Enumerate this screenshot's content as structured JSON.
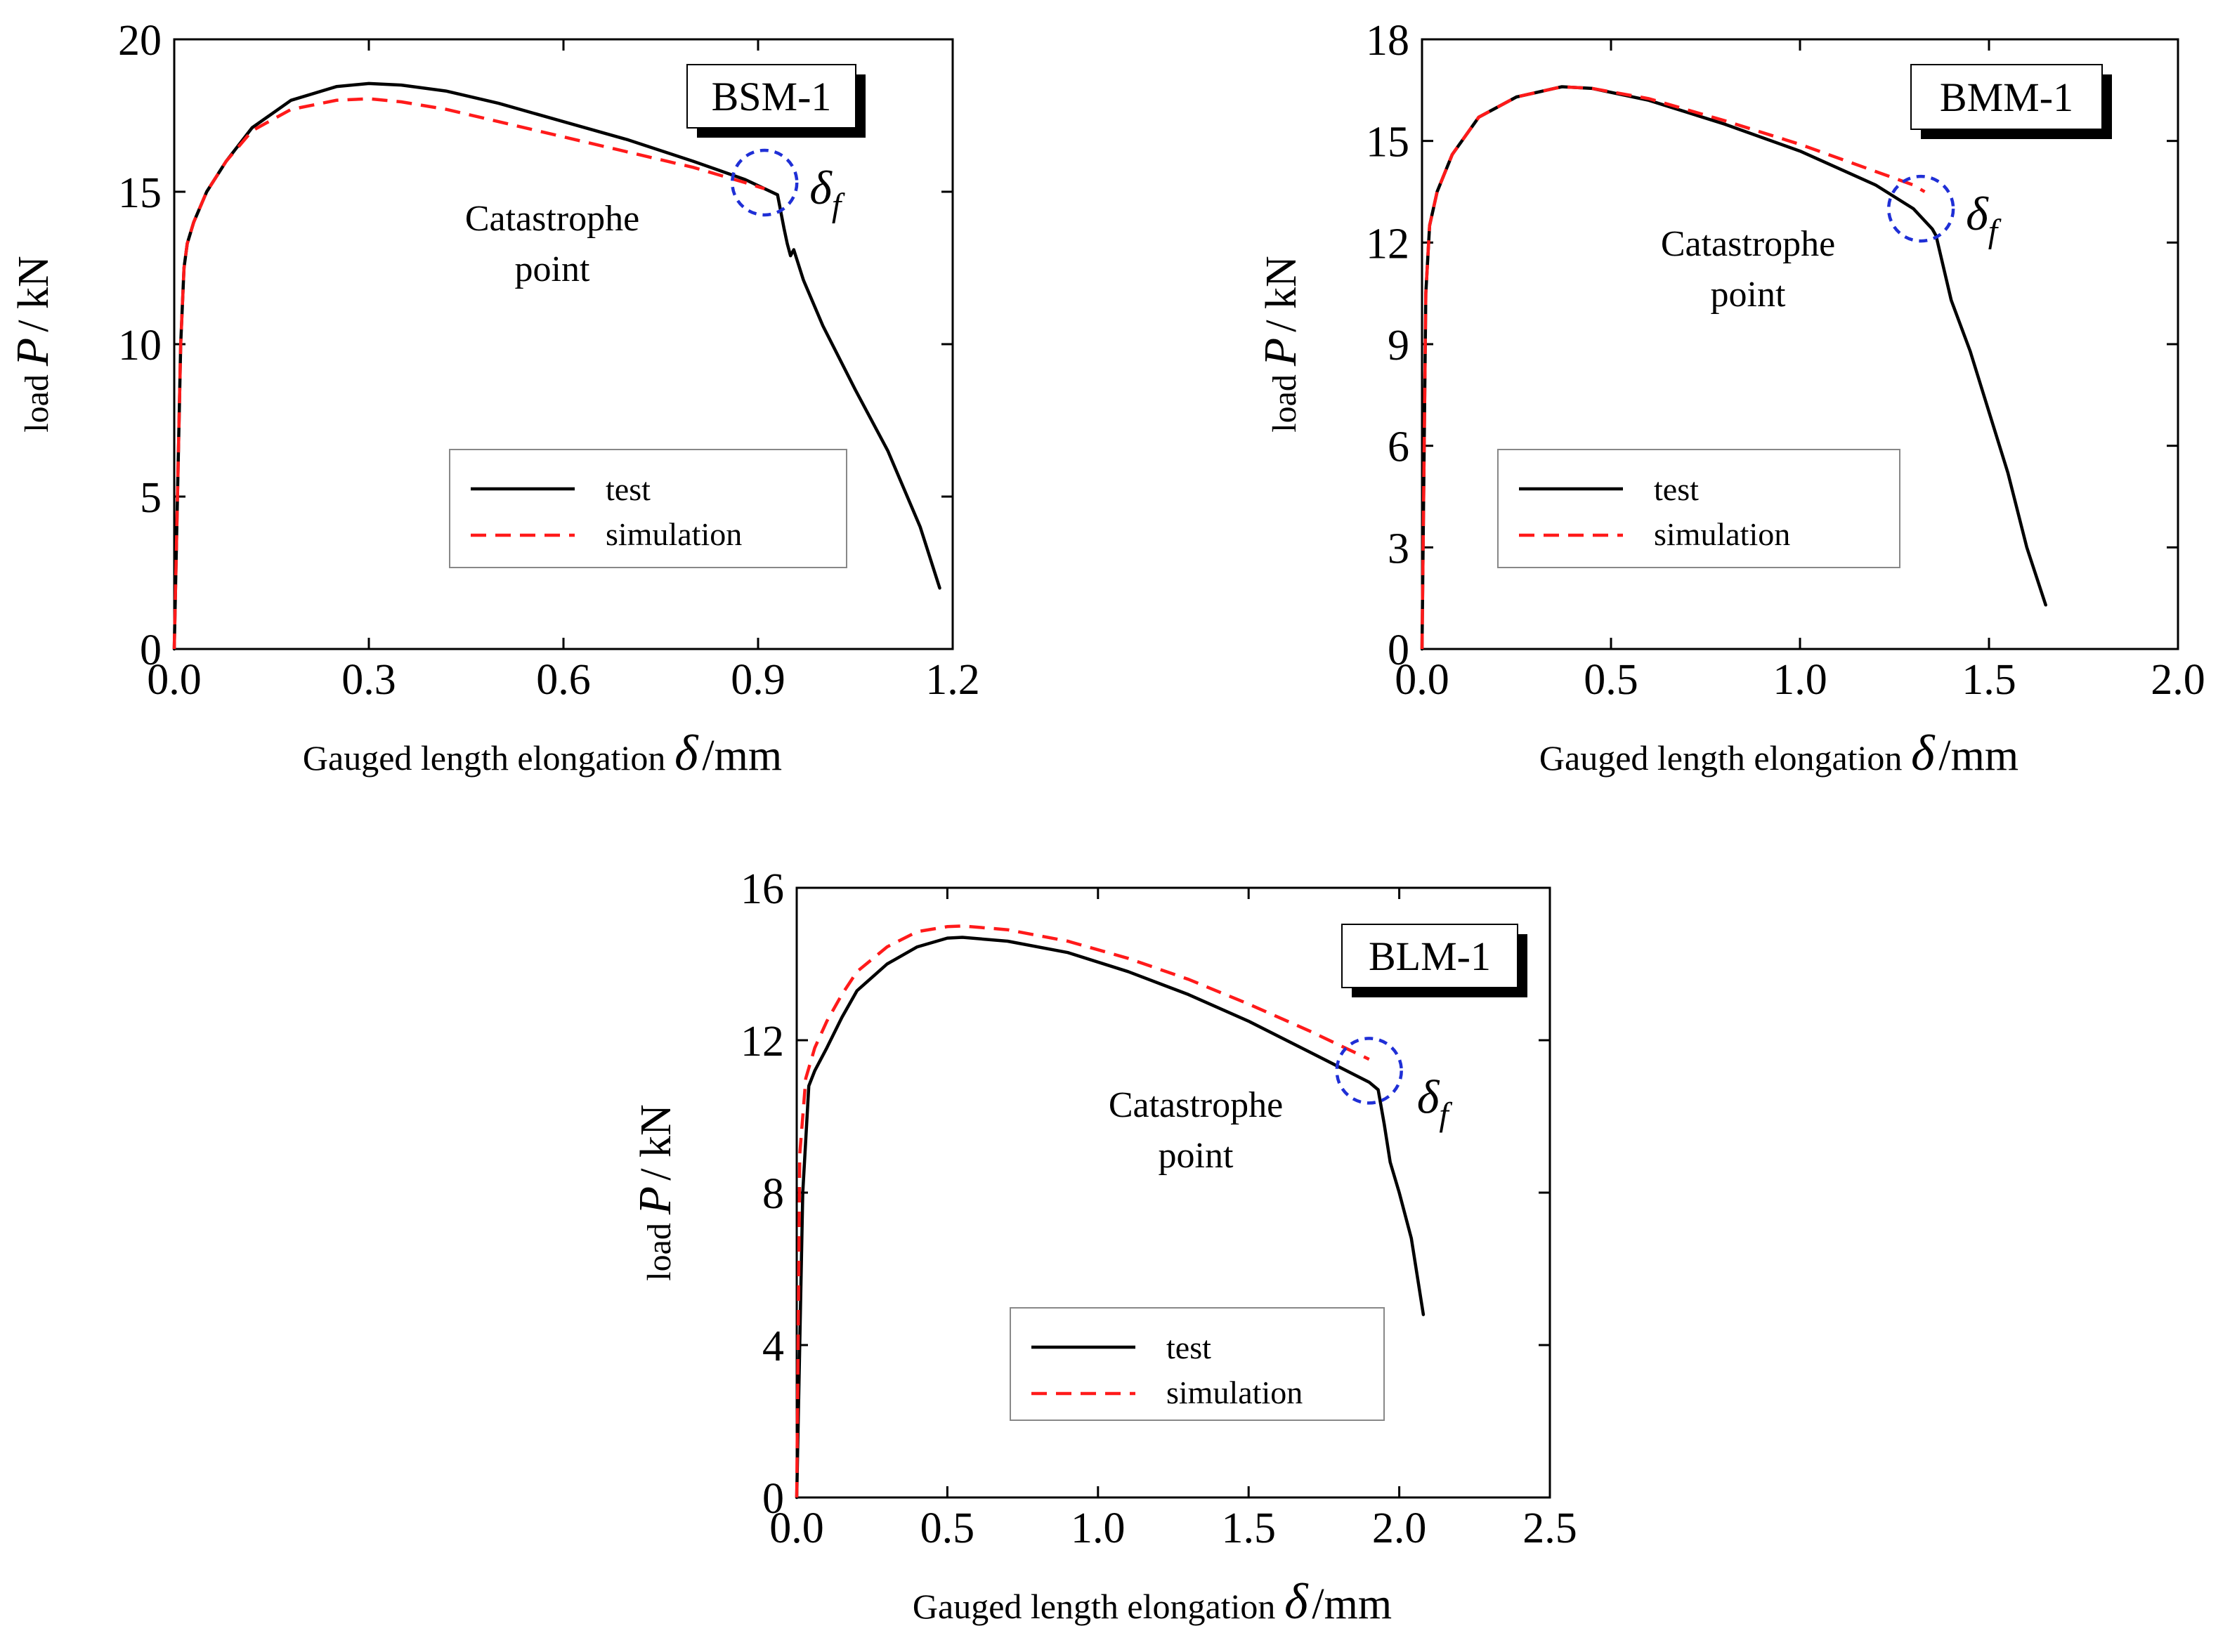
{
  "colors": {
    "test": "#000000",
    "simulation": "#ff1a1a",
    "catastrophe_circle": "#1f2fd6"
  },
  "chart_data": [
    {
      "type": "line",
      "specimen": "BSM-1",
      "xlabel": "Gauged length elongation",
      "xlabel_symbol": "δ",
      "xlabel_unit": "/mm",
      "ylabel_prefix": "load",
      "ylabel_symbol": "P",
      "ylabel_unit": "/ kN",
      "xlim": [
        0,
        1.2
      ],
      "ylim": [
        0,
        20
      ],
      "xticks": [
        0.0,
        0.3,
        0.6,
        0.9,
        1.2
      ],
      "xtick_labels": [
        "0.0",
        "0.3",
        "0.6",
        "0.9",
        "1.2"
      ],
      "yticks": [
        0,
        5,
        10,
        15,
        20
      ],
      "ytick_labels": [
        "0",
        "5",
        "10",
        "15",
        "20"
      ],
      "annotation_lines": [
        "Catastrophe",
        "point"
      ],
      "delta_f_symbol": "δ",
      "delta_f_sub": "f",
      "catastrophe_point": {
        "x": 0.91,
        "y": 15.3
      },
      "legend": [
        "test",
        "simulation"
      ],
      "series": [
        {
          "name": "test",
          "x": [
            0,
            0.01,
            0.015,
            0.02,
            0.03,
            0.05,
            0.08,
            0.12,
            0.18,
            0.25,
            0.3,
            0.35,
            0.42,
            0.5,
            0.6,
            0.7,
            0.8,
            0.88,
            0.93,
            0.94,
            0.945,
            0.95,
            0.955,
            0.97,
            1.0,
            1.05,
            1.1,
            1.15,
            1.18
          ],
          "y": [
            0,
            10.0,
            12.5,
            13.3,
            14.0,
            15.0,
            16.0,
            17.1,
            18.0,
            18.45,
            18.55,
            18.5,
            18.3,
            17.9,
            17.3,
            16.7,
            16.0,
            15.4,
            14.9,
            13.8,
            13.3,
            12.9,
            13.1,
            12.1,
            10.6,
            8.5,
            6.5,
            4.0,
            2.0
          ]
        },
        {
          "name": "simulation",
          "x": [
            0,
            0.01,
            0.015,
            0.02,
            0.03,
            0.05,
            0.08,
            0.12,
            0.18,
            0.25,
            0.3,
            0.35,
            0.42,
            0.5,
            0.6,
            0.7,
            0.8,
            0.88,
            0.91
          ],
          "y": [
            0,
            10.0,
            12.5,
            13.3,
            14.0,
            15.0,
            16.0,
            17.0,
            17.7,
            18.0,
            18.05,
            17.95,
            17.7,
            17.3,
            16.8,
            16.3,
            15.8,
            15.3,
            15.1
          ]
        }
      ]
    },
    {
      "type": "line",
      "specimen": "BMM-1",
      "xlabel": "Gauged length elongation",
      "xlabel_symbol": "δ",
      "xlabel_unit": "/mm",
      "ylabel_prefix": "load",
      "ylabel_symbol": "P",
      "ylabel_unit": "/ kN",
      "xlim": [
        0,
        2.0
      ],
      "ylim": [
        0,
        18
      ],
      "xticks": [
        0.0,
        0.5,
        1.0,
        1.5,
        2.0
      ],
      "xtick_labels": [
        "0.0",
        "0.5",
        "1.0",
        "1.5",
        "2.0"
      ],
      "yticks": [
        0,
        3,
        6,
        9,
        12,
        15,
        18
      ],
      "ytick_labels": [
        "0",
        "3",
        "6",
        "9",
        "12",
        "15",
        "18"
      ],
      "annotation_lines": [
        "Catastrophe",
        "point"
      ],
      "delta_f_symbol": "δ",
      "delta_f_sub": "f",
      "catastrophe_point": {
        "x": 1.32,
        "y": 13.0
      },
      "legend": [
        "test",
        "simulation"
      ],
      "series": [
        {
          "name": "test",
          "x": [
            0,
            0.01,
            0.02,
            0.04,
            0.08,
            0.15,
            0.25,
            0.37,
            0.45,
            0.6,
            0.8,
            1.0,
            1.2,
            1.3,
            1.35,
            1.36,
            1.4,
            1.45,
            1.5,
            1.55,
            1.6,
            1.65
          ],
          "y": [
            0,
            10.5,
            12.5,
            13.5,
            14.6,
            15.7,
            16.3,
            16.6,
            16.55,
            16.2,
            15.5,
            14.7,
            13.7,
            13.0,
            12.4,
            12.2,
            10.3,
            8.8,
            7.0,
            5.2,
            3.0,
            1.3
          ]
        },
        {
          "name": "simulation",
          "x": [
            0,
            0.01,
            0.02,
            0.04,
            0.08,
            0.15,
            0.25,
            0.37,
            0.45,
            0.6,
            0.8,
            1.0,
            1.2,
            1.3,
            1.33
          ],
          "y": [
            0,
            10.5,
            12.5,
            13.5,
            14.6,
            15.7,
            16.3,
            16.6,
            16.55,
            16.25,
            15.6,
            14.9,
            14.1,
            13.7,
            13.5
          ]
        }
      ]
    },
    {
      "type": "line",
      "specimen": "BLM-1",
      "xlabel": "Gauged length elongation",
      "xlabel_symbol": "δ",
      "xlabel_unit": "/mm",
      "ylabel_prefix": "load",
      "ylabel_symbol": "P",
      "ylabel_unit": "/ kN",
      "xlim": [
        0,
        2.5
      ],
      "ylim": [
        0,
        16
      ],
      "xticks": [
        0.0,
        0.5,
        1.0,
        1.5,
        2.0,
        2.5
      ],
      "xtick_labels": [
        "0.0",
        "0.5",
        "1.0",
        "1.5",
        "2.0",
        "2.5"
      ],
      "yticks": [
        0,
        4,
        8,
        12,
        16
      ],
      "ytick_labels": [
        "0",
        "4",
        "8",
        "12",
        "16"
      ],
      "annotation_lines": [
        "Catastrophe",
        "point"
      ],
      "delta_f_symbol": "δ",
      "delta_f_sub": "f",
      "catastrophe_point": {
        "x": 1.9,
        "y": 11.2
      },
      "legend": [
        "test",
        "simulation"
      ],
      "series": [
        {
          "name": "test",
          "x": [
            0,
            0.02,
            0.04,
            0.06,
            0.1,
            0.15,
            0.2,
            0.3,
            0.4,
            0.5,
            0.55,
            0.7,
            0.9,
            1.1,
            1.3,
            1.5,
            1.7,
            1.9,
            1.93,
            1.95,
            1.97,
            2.0,
            2.04,
            2.08
          ],
          "y": [
            0,
            8.0,
            10.8,
            11.2,
            11.8,
            12.6,
            13.3,
            14.0,
            14.45,
            14.68,
            14.7,
            14.6,
            14.3,
            13.8,
            13.2,
            12.5,
            11.7,
            10.9,
            10.7,
            9.8,
            8.8,
            8.0,
            6.8,
            4.8
          ]
        },
        {
          "name": "simulation",
          "x": [
            0,
            0.01,
            0.03,
            0.06,
            0.1,
            0.15,
            0.2,
            0.3,
            0.4,
            0.5,
            0.55,
            0.7,
            0.9,
            1.1,
            1.3,
            1.5,
            1.7,
            1.9
          ],
          "y": [
            0,
            9.0,
            11.0,
            11.8,
            12.5,
            13.2,
            13.8,
            14.45,
            14.85,
            14.98,
            15.0,
            14.9,
            14.6,
            14.15,
            13.6,
            12.95,
            12.25,
            11.5
          ]
        }
      ]
    }
  ]
}
